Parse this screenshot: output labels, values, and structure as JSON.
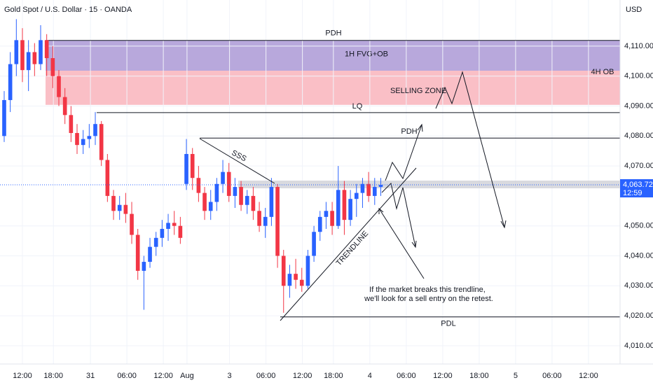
{
  "chart_data": {
    "type": "candlestick",
    "title": "Gold Spot / U.S. Dollar · 15 · OANDA",
    "currency": "USD",
    "up_color": "#2962ff",
    "down_color": "#f23645",
    "x": [
      -3,
      -2,
      -1,
      0,
      1,
      2,
      3,
      4,
      5,
      6,
      7,
      8,
      9,
      10,
      11,
      12,
      13,
      14,
      15,
      16,
      17,
      18,
      19,
      20,
      21,
      22,
      23,
      24,
      25,
      26,
      27,
      28,
      29,
      30,
      31,
      32,
      33,
      34,
      35,
      36,
      37,
      38,
      39,
      40,
      41,
      42,
      43,
      44,
      45,
      46,
      47,
      48,
      49,
      50,
      51,
      52,
      53,
      54,
      55,
      56,
      57,
      58,
      59
    ],
    "open": [
      4080,
      4092,
      4104,
      4112,
      4102,
      4108,
      4104,
      4112,
      4106,
      4100,
      4093,
      4087,
      4081,
      4077,
      4079,
      4080,
      4084,
      4072,
      4060,
      4055,
      4057,
      4054,
      4047,
      4035,
      4038,
      4043,
      4046,
      4049,
      4051,
      4050,
      4064,
      4074,
      4066,
      4061,
      4055,
      4058,
      4064,
      4068,
      4060,
      4063,
      4057,
      4060,
      4055,
      4050,
      4053,
      4063,
      4040,
      4030,
      4034,
      4032,
      4030,
      4040,
      4048,
      4053,
      4055,
      4050,
      4062,
      4052,
      4059,
      4061,
      4064,
      4060,
      4063
    ],
    "high": [
      4095,
      4108,
      4119,
      4116,
      4112,
      4111,
      4117,
      4114,
      4110,
      4102,
      4096,
      4090,
      4084,
      4082,
      4084,
      4088,
      4085,
      4074,
      4062,
      4060,
      4061,
      4058,
      4049,
      4040,
      4046,
      4048,
      4052,
      4054,
      4055,
      4053,
      4079,
      4076,
      4070,
      4063,
      4062,
      4066,
      4072,
      4071,
      4066,
      4065,
      4062,
      4063,
      4058,
      4056,
      4066,
      4064,
      4042,
      4037,
      4039,
      4036,
      4042,
      4050,
      4055,
      4058,
      4058,
      4070,
      4065,
      4062,
      4064,
      4066,
      4068,
      4066,
      4066
    ],
    "low": [
      4078,
      4088,
      4100,
      4098,
      4095,
      4100,
      4102,
      4100,
      4096,
      4090,
      4084,
      4078,
      4074,
      4074,
      4076,
      4077,
      4070,
      4058,
      4052,
      4052,
      4051,
      4044,
      4032,
      4022,
      4036,
      4040,
      4043,
      4045,
      4047,
      4044,
      4062,
      4062,
      4058,
      4052,
      4052,
      4055,
      4061,
      4058,
      4056,
      4055,
      4054,
      4052,
      4048,
      4046,
      4050,
      4036,
      4021,
      4026,
      4029,
      4028,
      4029,
      4038,
      4045,
      4049,
      4047,
      4049,
      4047,
      4050,
      4053,
      4056,
      4058,
      4057,
      4060
    ],
    "close": [
      4092,
      4104,
      4112,
      4102,
      4108,
      4104,
      4112,
      4106,
      4100,
      4093,
      4087,
      4081,
      4077,
      4079,
      4080,
      4084,
      4072,
      4060,
      4055,
      4057,
      4054,
      4047,
      4035,
      4038,
      4043,
      4046,
      4049,
      4051,
      4050,
      4046,
      4074,
      4066,
      4061,
      4055,
      4058,
      4064,
      4068,
      4060,
      4063,
      4057,
      4060,
      4055,
      4050,
      4053,
      4063,
      4040,
      4030,
      4034,
      4032,
      4030,
      4040,
      4048,
      4053,
      4055,
      4050,
      4062,
      4052,
      4059,
      4061,
      4064,
      4060,
      4063,
      4063.7
    ],
    "xlim": [
      -3.69,
      98.4
    ],
    "xticks": [
      {
        "value": 0,
        "label": "12:00"
      },
      {
        "value": 5.1,
        "label": "18:00"
      },
      {
        "value": 11.2,
        "label": "31"
      },
      {
        "value": 17.2,
        "label": "06:00"
      },
      {
        "value": 23.2,
        "label": "12:00"
      },
      {
        "value": 27.1,
        "label": "Aug"
      },
      {
        "value": 34.1,
        "label": "3"
      },
      {
        "value": 40.1,
        "label": "06:00"
      },
      {
        "value": 46.1,
        "label": "12:00"
      },
      {
        "value": 51.2,
        "label": "18:00"
      },
      {
        "value": 57.2,
        "label": "4"
      },
      {
        "value": 63.2,
        "label": "06:00"
      },
      {
        "value": 69.2,
        "label": "12:00"
      },
      {
        "value": 75.2,
        "label": "18:00"
      },
      {
        "value": 81.2,
        "label": "5"
      },
      {
        "value": 87.2,
        "label": "06:00"
      },
      {
        "value": 93.2,
        "label": "12:00"
      }
    ],
    "ylim": [
      4003.9,
      4125.4
    ],
    "yticks": [
      {
        "value": 4110,
        "label": "4,110.000"
      },
      {
        "value": 4100,
        "label": "4,100.000"
      },
      {
        "value": 4090,
        "label": "4,090.000"
      },
      {
        "value": 4080,
        "label": "4,080.000"
      },
      {
        "value": 4070,
        "label": "4,070.000"
      },
      {
        "value": 4050,
        "label": "4,050.000"
      },
      {
        "value": 4040,
        "label": "4,040.000"
      },
      {
        "value": 4030,
        "label": "4,030.000"
      },
      {
        "value": 4020,
        "label": "4,020.000"
      },
      {
        "value": 4010,
        "label": "4,010.000"
      }
    ],
    "last_price": {
      "value": 4063.72,
      "label": "4,063.720"
    },
    "countdown": "12:59",
    "zones": [
      {
        "label": "1H FVG+OB",
        "low": 4101.8,
        "high": 4111.9,
        "color": "#b09fd8"
      },
      {
        "label": "4H OB",
        "low": 4090.4,
        "high": 4101.8,
        "color": "#f9b8c0"
      }
    ],
    "levels": [
      {
        "label": "PDH",
        "price": 4111.9
      },
      {
        "label": "LQ",
        "price": 4087.8
      },
      {
        "label": "PDH",
        "price": 4079.3
      },
      {
        "label": "PDL",
        "price": 4019.6
      }
    ],
    "annotations": [
      "SELLING ZONE",
      "SSS",
      "TRENDLINE",
      "If the market breaks this trendline,",
      "we'll look for a sell entry on the retest."
    ]
  }
}
